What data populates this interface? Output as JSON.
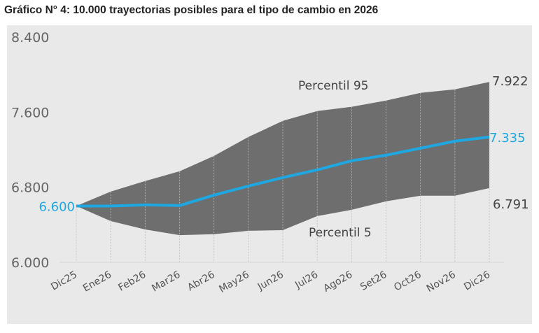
{
  "title": "Gráfico N° 4: 10.000 trayectorias posibles para el tipo de cambio en 2026",
  "chart_data": {
    "type": "area",
    "title": "Gráfico N° 4: 10.000 trayectorias posibles para el tipo de cambio en 2026",
    "categories": [
      "Dic25",
      "Ene26",
      "Feb26",
      "Mar26",
      "Abr26",
      "May26",
      "Jun26",
      "Jul26",
      "Ago26",
      "Set26",
      "Oct26",
      "Nov26",
      "Dic26"
    ],
    "ylim": [
      6000,
      8400
    ],
    "yticks": [
      6000,
      6800,
      7600,
      8400
    ],
    "ytick_labels": [
      "6.000",
      "6.800",
      "7.600",
      "8.400"
    ],
    "grid": "vertical dashed lines at categories",
    "series": [
      {
        "name": "Percentil 95",
        "role": "upper band",
        "values": [
          6600,
          6754,
          6866,
          6970,
          7134,
          7336,
          7507,
          7612,
          7657,
          7724,
          7806,
          7843,
          7922
        ]
      },
      {
        "role": "central path",
        "values": [
          6600,
          6600,
          6612,
          6605,
          6716,
          6813,
          6903,
          6985,
          7082,
          7142,
          7216,
          7291,
          7335
        ]
      },
      {
        "name": "Percentil 5",
        "role": "lower band",
        "values": [
          6600,
          6440,
          6350,
          6290,
          6300,
          6336,
          6343,
          6493,
          6560,
          6650,
          6710,
          6710,
          6791
        ]
      }
    ],
    "annotations": {
      "start": "6.600",
      "end_upper": "7.922",
      "end_central": "7.335",
      "end_lower": "6.791",
      "upper_label": "Percentil 95",
      "lower_label": "Percentil 5"
    },
    "colors": {
      "band": "#6e6e6e",
      "line": "#1ea7e1",
      "background": "#e9e9e9",
      "text": "#555555"
    }
  }
}
